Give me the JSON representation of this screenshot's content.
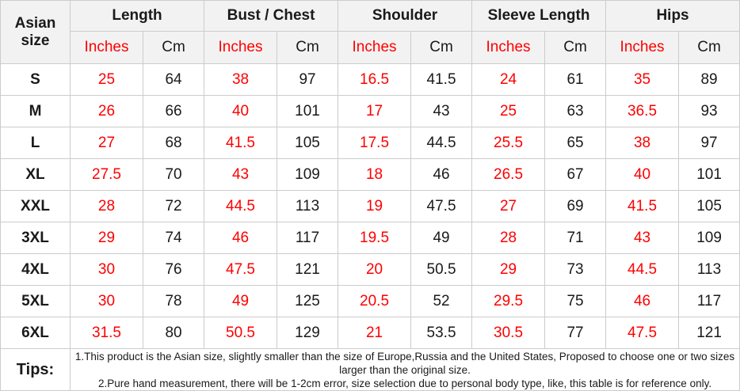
{
  "table": {
    "corner_header": "Asian size",
    "groups": [
      {
        "label": "Length"
      },
      {
        "label": "Bust / Chest"
      },
      {
        "label": "Shoulder"
      },
      {
        "label": "Sleeve Length"
      },
      {
        "label": "Hips"
      }
    ],
    "units": {
      "inches": "Inches",
      "cm": "Cm"
    },
    "rows": [
      {
        "size": "S",
        "values": [
          "25",
          "64",
          "38",
          "97",
          "16.5",
          "41.5",
          "24",
          "61",
          "35",
          "89"
        ]
      },
      {
        "size": "M",
        "values": [
          "26",
          "66",
          "40",
          "101",
          "17",
          "43",
          "25",
          "63",
          "36.5",
          "93"
        ]
      },
      {
        "size": "L",
        "values": [
          "27",
          "68",
          "41.5",
          "105",
          "17.5",
          "44.5",
          "25.5",
          "65",
          "38",
          "97"
        ]
      },
      {
        "size": "XL",
        "values": [
          "27.5",
          "70",
          "43",
          "109",
          "18",
          "46",
          "26.5",
          "67",
          "40",
          "101"
        ]
      },
      {
        "size": "XXL",
        "values": [
          "28",
          "72",
          "44.5",
          "113",
          "19",
          "47.5",
          "27",
          "69",
          "41.5",
          "105"
        ]
      },
      {
        "size": "3XL",
        "values": [
          "29",
          "74",
          "46",
          "117",
          "19.5",
          "49",
          "28",
          "71",
          "43",
          "109"
        ]
      },
      {
        "size": "4XL",
        "values": [
          "30",
          "76",
          "47.5",
          "121",
          "20",
          "50.5",
          "29",
          "73",
          "44.5",
          "113"
        ]
      },
      {
        "size": "5XL",
        "values": [
          "30",
          "78",
          "49",
          "125",
          "20.5",
          "52",
          "29.5",
          "75",
          "46",
          "117"
        ]
      },
      {
        "size": "6XL",
        "values": [
          "31.5",
          "80",
          "50.5",
          "129",
          "21",
          "53.5",
          "30.5",
          "77",
          "47.5",
          "121"
        ]
      }
    ],
    "tips": {
      "label": "Tips:",
      "lines": [
        "1.This product is the Asian size, slightly smaller than the size of Europe,Russia and the United States, Proposed to choose one or two sizes larger than the original size.",
        "2.Pure hand measurement, there will be 1-2cm error, size selection due to personal body type, like, this table is for reference only."
      ]
    },
    "colors": {
      "accent_red": "#fe0000",
      "text_black": "#1a1a1a",
      "header_bg": "#f2f2f2",
      "border": "#cccccc"
    }
  }
}
